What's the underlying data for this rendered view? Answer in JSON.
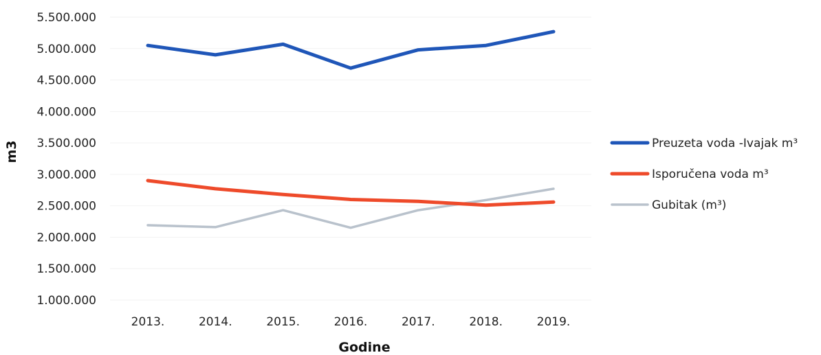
{
  "chart_data": {
    "type": "line",
    "title": "",
    "xlabel": "Godine",
    "ylabel": "m3",
    "categories": [
      "2013.",
      "2014.",
      "2015.",
      "2016.",
      "2017.",
      "2018.",
      "2019."
    ],
    "ylim": [
      1000000,
      5500000
    ],
    "yticks": [
      1000000,
      1500000,
      2000000,
      2500000,
      3000000,
      3500000,
      4000000,
      4500000,
      5000000,
      5500000
    ],
    "ytick_labels": [
      "1.000.000",
      "1.500.000",
      "2.000.000",
      "2.500.000",
      "3.000.000",
      "3.500.000",
      "4.000.000",
      "4.500.000",
      "5.000.000",
      "5.500.000"
    ],
    "grid": true,
    "legend_position": "right",
    "series": [
      {
        "name": "Preuzeta voda -Ivajak m³",
        "color": "#1f56b8",
        "values": [
          5050000,
          4900000,
          5070000,
          4690000,
          4980000,
          5050000,
          5270000
        ]
      },
      {
        "name": "Isporučena voda m³",
        "color": "#ee4a2a",
        "values": [
          2900000,
          2770000,
          2680000,
          2600000,
          2570000,
          2510000,
          2560000
        ]
      },
      {
        "name": "Gubitak (m³)",
        "color": "#b9c2cc",
        "values": [
          2190000,
          2160000,
          2430000,
          2150000,
          2430000,
          2590000,
          2770000
        ]
      }
    ]
  }
}
